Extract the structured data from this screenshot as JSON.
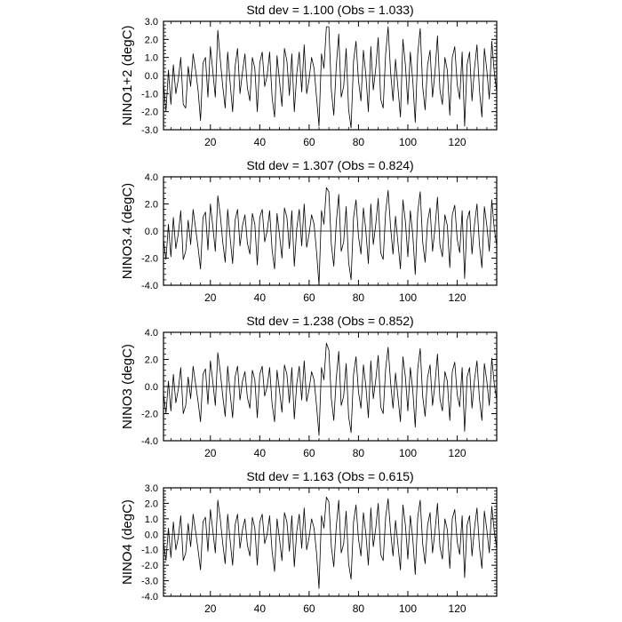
{
  "chart_data": [
    {
      "type": "line",
      "title": "Std dev = 1.100 (Obs = 1.033)",
      "xlabel": "",
      "ylabel": "NINO1+2 (degC)",
      "xlim": [
        1,
        136
      ],
      "ylim": [
        -3.0,
        3.0
      ],
      "x_ticks": [
        20,
        40,
        60,
        80,
        100,
        120
      ],
      "y_ticks": [
        -3.0,
        -2.0,
        -1.0,
        0.0,
        1.0,
        2.0,
        3.0
      ],
      "y_tick_labels": [
        "-3.0",
        "-2.0",
        "-1.0",
        "0.0",
        "1.0",
        "2.0",
        "3.0"
      ],
      "zero_line": true,
      "grid": false,
      "line_color": "#000000",
      "series": [
        {
          "values": [
            -0.4,
            -2.0,
            0.3,
            -1.6,
            0.6,
            -1.0,
            -0.2,
            1.0,
            -1.6,
            -1.8,
            0.5,
            -0.6,
            1.2,
            0.3,
            -0.8,
            -2.5,
            0.7,
            1.0,
            -1.2,
            1.6,
            0.2,
            -1.2,
            2.5,
            0.9,
            -0.6,
            -1.8,
            1.3,
            -0.4,
            -2.0,
            0.5,
            1.5,
            -1.0,
            0.2,
            1.2,
            -0.7,
            -1.4,
            1.0,
            0.4,
            -2.0,
            0.7,
            1.3,
            -0.6,
            0.0,
            1.3,
            -1.2,
            -2.3,
            1.1,
            -0.3,
            -1.7,
            1.5,
            0.8,
            -1.1,
            1.2,
            -2.0,
            0.1,
            1.3,
            -0.9,
            1.7,
            -1.0,
            -0.2,
            1.0,
            0.4,
            -1.2,
            -2.8,
            1.2,
            0.4,
            2.7,
            2.7,
            -0.8,
            -2.2,
            0.5,
            2.3,
            -1.2,
            -0.6,
            1.5,
            -1.9,
            -2.9,
            0.8,
            1.9,
            -0.3,
            -1.4,
            1.4,
            0.0,
            -2.0,
            1.6,
            -0.8,
            0.4,
            2.1,
            -1.3,
            -1.8,
            1.2,
            2.7,
            0.2,
            -1.4,
            0.9,
            -0.7,
            -2.3,
            2.0,
            0.6,
            -1.6,
            1.3,
            -0.3,
            -2.6,
            1.2,
            2.6,
            -0.6,
            -1.9,
            0.6,
            1.4,
            -1.2,
            0.2,
            2.2,
            -0.8,
            -1.6,
            1.0,
            0.3,
            -2.2,
            1.0,
            1.6,
            -0.5,
            -1.3,
            1.3,
            -2.8,
            0.6,
            1.3,
            -1.4,
            0.4,
            1.7,
            -0.8,
            -2.3,
            1.5,
            0.3,
            -1.3,
            1.9,
            0.2,
            -0.9
          ]
        }
      ]
    },
    {
      "type": "line",
      "title": "Std dev = 1.307 (Obs = 0.824)",
      "xlabel": "",
      "ylabel": "NINO3.4 (degC)",
      "xlim": [
        1,
        136
      ],
      "ylim": [
        -4.0,
        4.0
      ],
      "x_ticks": [
        20,
        40,
        60,
        80,
        100,
        120
      ],
      "y_ticks": [
        -4.0,
        -2.0,
        0.0,
        2.0,
        4.0
      ],
      "y_tick_labels": [
        "-4.0",
        "-2.0",
        "0.0",
        "2.0",
        "4.0"
      ],
      "zero_line": true,
      "grid": false,
      "line_color": "#000000",
      "series": [
        {
          "values": [
            -0.6,
            -2.1,
            0.5,
            -1.9,
            1.0,
            -1.3,
            -0.2,
            1.5,
            -2.1,
            -1.5,
            0.8,
            -1.0,
            1.6,
            0.2,
            -1.2,
            -2.8,
            1.0,
            1.4,
            -1.4,
            2.0,
            0.3,
            -1.5,
            2.6,
            1.2,
            -0.8,
            -2.3,
            1.6,
            -0.5,
            -2.4,
            0.8,
            1.6,
            -1.1,
            0.4,
            1.2,
            -0.9,
            -1.7,
            1.3,
            0.5,
            -2.5,
            1.0,
            1.6,
            -0.8,
            0.0,
            1.5,
            -1.4,
            -2.8,
            1.3,
            -0.3,
            -2.0,
            1.7,
            1.0,
            -1.3,
            1.5,
            -2.6,
            0.2,
            1.6,
            -1.1,
            2.0,
            -1.2,
            -0.2,
            1.2,
            0.5,
            -1.5,
            -4.0,
            1.5,
            0.5,
            3.2,
            2.9,
            -1.0,
            -2.6,
            0.6,
            2.7,
            -1.5,
            -0.8,
            1.8,
            -2.3,
            -3.6,
            1.0,
            2.3,
            -0.4,
            -1.7,
            1.7,
            0.0,
            -2.4,
            2.0,
            -1.0,
            0.5,
            2.4,
            -1.6,
            -2.1,
            1.4,
            3.0,
            0.3,
            -1.7,
            1.1,
            -0.9,
            -2.8,
            2.3,
            0.7,
            -1.9,
            1.5,
            -0.3,
            -3.2,
            1.4,
            2.9,
            -0.8,
            -2.3,
            0.7,
            1.7,
            -1.5,
            0.2,
            2.5,
            -1.0,
            -1.9,
            1.2,
            0.4,
            -2.7,
            1.2,
            1.9,
            -0.6,
            -1.6,
            1.5,
            -3.5,
            0.8,
            1.5,
            -1.7,
            0.5,
            2.0,
            -1.0,
            -2.7,
            1.8,
            0.4,
            -1.5,
            2.3,
            0.2,
            -1.1
          ]
        }
      ]
    },
    {
      "type": "line",
      "title": "Std dev = 1.238 (Obs = 0.852)",
      "xlabel": "",
      "ylabel": "NINO3 (degC)",
      "xlim": [
        1,
        136
      ],
      "ylim": [
        -4.0,
        4.0
      ],
      "x_ticks": [
        20,
        40,
        60,
        80,
        100,
        120
      ],
      "y_ticks": [
        -4.0,
        -2.0,
        0.0,
        2.0,
        4.0
      ],
      "y_tick_labels": [
        "-4.0",
        "-2.0",
        "0.0",
        "2.0",
        "4.0"
      ],
      "zero_line": true,
      "grid": false,
      "line_color": "#000000",
      "series": [
        {
          "values": [
            -0.5,
            -2.0,
            0.4,
            -1.8,
            0.9,
            -1.2,
            -0.2,
            1.4,
            -2.0,
            -1.4,
            0.7,
            -0.9,
            1.5,
            0.2,
            -1.1,
            -2.6,
            0.9,
            1.3,
            -1.3,
            1.9,
            0.3,
            -1.4,
            2.5,
            1.1,
            -0.7,
            -2.2,
            1.5,
            -0.5,
            -2.3,
            0.7,
            1.5,
            -1.0,
            0.4,
            1.1,
            -0.8,
            -1.6,
            1.2,
            0.5,
            -2.3,
            0.9,
            1.5,
            -0.7,
            0.0,
            1.4,
            -1.3,
            -2.6,
            1.2,
            -0.3,
            -1.9,
            1.6,
            0.9,
            -1.2,
            1.4,
            -2.4,
            0.2,
            1.5,
            -1.0,
            1.9,
            -1.1,
            -0.2,
            1.1,
            0.5,
            -1.4,
            -3.6,
            1.4,
            0.5,
            3.2,
            2.7,
            -0.9,
            -2.5,
            0.6,
            2.6,
            -1.4,
            -0.7,
            1.7,
            -2.2,
            -3.4,
            0.9,
            2.2,
            -0.4,
            -1.6,
            1.6,
            0.0,
            -2.3,
            1.9,
            -0.9,
            0.5,
            2.3,
            -1.5,
            -2.0,
            1.3,
            2.9,
            0.3,
            -1.6,
            1.0,
            -0.8,
            -2.6,
            2.2,
            0.7,
            -1.8,
            1.4,
            -0.3,
            -3.0,
            1.3,
            2.8,
            -0.7,
            -2.2,
            0.7,
            1.6,
            -1.4,
            0.2,
            2.4,
            -0.9,
            -1.8,
            1.1,
            0.4,
            -2.5,
            1.1,
            1.8,
            -0.6,
            -1.5,
            1.4,
            -3.3,
            0.7,
            1.4,
            -1.6,
            0.5,
            1.9,
            -0.9,
            -2.5,
            1.7,
            0.4,
            -1.4,
            2.1,
            0.2,
            -1.0
          ]
        }
      ]
    },
    {
      "type": "line",
      "title": "Std dev = 1.163 (Obs = 0.615)",
      "xlabel": "",
      "ylabel": "NINO4 (degC)",
      "xlim": [
        1,
        136
      ],
      "ylim": [
        -4.0,
        3.0
      ],
      "x_ticks": [
        20,
        40,
        60,
        80,
        100,
        120
      ],
      "y_ticks": [
        -4.0,
        -3.0,
        -2.0,
        -1.0,
        0.0,
        1.0,
        2.0,
        3.0
      ],
      "y_tick_labels": [
        "-4.0",
        "-3.0",
        "-2.0",
        "-1.0",
        "0.0",
        "1.0",
        "2.0",
        "3.0"
      ],
      "zero_line": true,
      "grid": false,
      "line_color": "#000000",
      "series": [
        {
          "values": [
            -0.5,
            -1.7,
            0.4,
            -1.5,
            0.8,
            -1.0,
            -0.2,
            1.2,
            -1.7,
            -1.2,
            0.7,
            -0.8,
            1.3,
            0.2,
            -1.0,
            -2.3,
            0.8,
            1.1,
            -1.1,
            1.6,
            0.2,
            -1.2,
            2.2,
            1.0,
            -0.6,
            -1.9,
            1.3,
            -0.4,
            -2.0,
            0.6,
            1.3,
            -0.9,
            0.3,
            1.0,
            -0.7,
            -1.4,
            1.1,
            0.4,
            -2.0,
            0.8,
            1.3,
            -0.6,
            0.0,
            1.2,
            -1.1,
            -2.4,
            1.0,
            -0.3,
            -1.7,
            1.4,
            0.8,
            -1.1,
            1.2,
            -2.1,
            0.2,
            1.3,
            -0.9,
            1.7,
            -1.0,
            -0.2,
            1.0,
            0.4,
            -1.2,
            -3.5,
            1.2,
            0.4,
            2.4,
            2.1,
            -0.8,
            -2.1,
            0.5,
            2.2,
            -1.2,
            -0.6,
            1.5,
            -1.9,
            -2.9,
            0.8,
            1.9,
            -0.3,
            -1.4,
            1.4,
            0.0,
            -2.0,
            1.7,
            -0.8,
            0.4,
            2.0,
            -1.3,
            -1.7,
            1.1,
            2.3,
            0.2,
            -1.4,
            0.9,
            -0.7,
            -2.3,
            1.9,
            0.6,
            -1.6,
            1.2,
            -0.3,
            -2.6,
            1.1,
            2.2,
            -0.6,
            -1.9,
            0.6,
            1.4,
            -1.2,
            0.2,
            2.0,
            -0.8,
            -1.6,
            1.0,
            0.3,
            -2.2,
            1.0,
            1.6,
            -0.5,
            -1.3,
            1.2,
            -2.8,
            0.6,
            1.2,
            -1.4,
            0.4,
            1.7,
            -0.8,
            -2.2,
            1.5,
            0.3,
            -1.2,
            1.8,
            0.2,
            -0.9
          ]
        }
      ]
    }
  ]
}
